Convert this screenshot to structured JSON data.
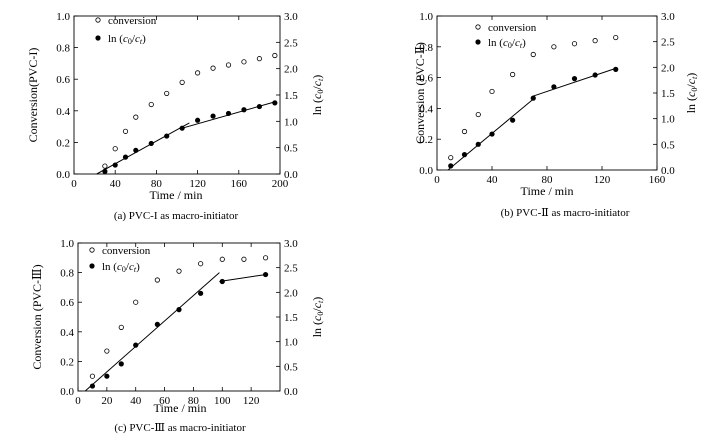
{
  "chart_data": [
    {
      "type": "scatter",
      "panel": "a",
      "caption": "(a) PVC-I as macro-initiator",
      "xlabel": "Time / min",
      "ylabel_left": "Conversion(PVC-I)",
      "ylabel_right": "ln (c0/ct)",
      "xlim": [
        0,
        200
      ],
      "xticks": [
        0,
        40,
        80,
        120,
        160,
        200
      ],
      "ylim_left": [
        0.0,
        1.0
      ],
      "yticks_left": [
        0.0,
        0.2,
        0.4,
        0.6,
        0.8,
        1.0
      ],
      "ylim_right": [
        0.0,
        3.0
      ],
      "yticks_right": [
        0.0,
        0.5,
        1.0,
        1.5,
        2.0,
        2.5,
        3.0
      ],
      "legend": [
        "conversion",
        "ln (c0/ct)"
      ],
      "series": [
        {
          "name": "conversion",
          "axis": "left",
          "marker": "open-circle",
          "x": [
            30,
            40,
            50,
            60,
            75,
            90,
            105,
            120,
            135,
            150,
            165,
            180,
            195
          ],
          "y": [
            0.05,
            0.16,
            0.27,
            0.36,
            0.44,
            0.51,
            0.58,
            0.64,
            0.67,
            0.69,
            0.71,
            0.73,
            0.75
          ]
        },
        {
          "name": "ln (c0/ct)",
          "axis": "right",
          "marker": "filled-circle",
          "x": [
            30,
            40,
            50,
            60,
            75,
            90,
            105,
            120,
            135,
            150,
            165,
            180,
            195
          ],
          "y": [
            0.05,
            0.17,
            0.32,
            0.45,
            0.58,
            0.72,
            0.87,
            1.02,
            1.1,
            1.15,
            1.22,
            1.28,
            1.35
          ]
        },
        {
          "name": "fit-1",
          "axis": "right",
          "marker": "line",
          "x": [
            22,
            112
          ],
          "y": [
            0.0,
            0.97
          ]
        },
        {
          "name": "fit-2",
          "axis": "right",
          "marker": "line",
          "x": [
            105,
            195
          ],
          "y": [
            0.87,
            1.37
          ]
        }
      ]
    },
    {
      "type": "scatter",
      "panel": "b",
      "caption": "(b) PVC-Ⅱ as macro-initiator",
      "xlabel": "Time / min",
      "ylabel_left": "Conversion (PVC-Ⅱ)",
      "ylabel_right": "ln (c0/ct)",
      "xlim": [
        0,
        160
      ],
      "xticks": [
        0,
        40,
        80,
        120,
        160
      ],
      "ylim_left": [
        0.0,
        1.0
      ],
      "yticks_left": [
        0.0,
        0.2,
        0.4,
        0.6,
        0.8,
        1.0
      ],
      "ylim_right": [
        0.0,
        3.0
      ],
      "yticks_right": [
        0.0,
        0.5,
        1.0,
        1.5,
        2.0,
        2.5,
        3.0
      ],
      "legend": [
        "conversion",
        "ln (c0/ct)"
      ],
      "series": [
        {
          "name": "conversion",
          "axis": "left",
          "marker": "open-circle",
          "x": [
            10,
            20,
            30,
            40,
            55,
            70,
            85,
            100,
            115,
            130
          ],
          "y": [
            0.08,
            0.25,
            0.36,
            0.51,
            0.62,
            0.75,
            0.8,
            0.82,
            0.84,
            0.86
          ]
        },
        {
          "name": "ln (c0/ct)",
          "axis": "right",
          "marker": "filled-circle",
          "x": [
            10,
            20,
            30,
            40,
            55,
            70,
            85,
            100,
            115,
            130
          ],
          "y": [
            0.08,
            0.3,
            0.5,
            0.7,
            0.97,
            1.4,
            1.62,
            1.78,
            1.85,
            1.96
          ]
        },
        {
          "name": "fit-1",
          "axis": "right",
          "marker": "line",
          "x": [
            8,
            70
          ],
          "y": [
            0.0,
            1.38
          ]
        },
        {
          "name": "fit-2",
          "axis": "right",
          "marker": "line",
          "x": [
            70,
            130
          ],
          "y": [
            1.44,
            1.98
          ]
        }
      ]
    },
    {
      "type": "scatter",
      "panel": "c",
      "caption": "(c) PVC-Ⅲ as macro-initiator",
      "xlabel": "Time / min",
      "ylabel_left": "Conversion (PVC-Ⅲ)",
      "ylabel_right": "ln (c0/ct)",
      "xlim": [
        0,
        140
      ],
      "xticks": [
        0,
        20,
        40,
        60,
        80,
        100,
        120
      ],
      "ylim_left": [
        0.0,
        1.0
      ],
      "yticks_left": [
        0.0,
        0.2,
        0.4,
        0.6,
        0.8,
        1.0
      ],
      "ylim_right": [
        0.0,
        3.0
      ],
      "yticks_right": [
        0.0,
        0.5,
        1.0,
        1.5,
        2.0,
        2.5,
        3.0
      ],
      "legend": [
        "conversion",
        "ln (c0/ct)"
      ],
      "series": [
        {
          "name": "conversion",
          "axis": "left",
          "marker": "open-circle",
          "x": [
            10,
            20,
            30,
            40,
            55,
            70,
            85,
            100,
            115,
            130
          ],
          "y": [
            0.1,
            0.27,
            0.43,
            0.6,
            0.75,
            0.81,
            0.86,
            0.89,
            0.89,
            0.9
          ]
        },
        {
          "name": "ln (c0/ct)",
          "axis": "right",
          "marker": "filled-circle",
          "x": [
            10,
            20,
            30,
            40,
            55,
            70,
            85,
            100,
            130
          ],
          "y": [
            0.1,
            0.3,
            0.55,
            0.93,
            1.35,
            1.65,
            1.98,
            2.22,
            2.36
          ]
        },
        {
          "name": "fit-1",
          "axis": "right",
          "marker": "line",
          "x": [
            5,
            98
          ],
          "y": [
            0.0,
            2.4
          ]
        },
        {
          "name": "fit-2",
          "axis": "right",
          "marker": "line",
          "x": [
            98,
            130
          ],
          "y": [
            2.22,
            2.36
          ]
        }
      ]
    }
  ]
}
